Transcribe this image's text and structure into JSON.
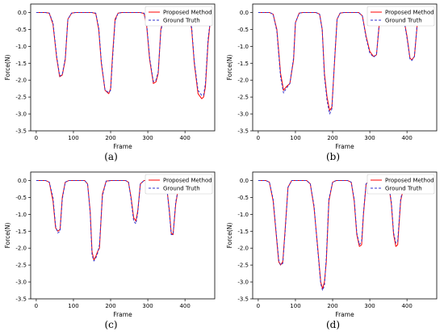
{
  "captions": [
    "(a)",
    "(b)",
    "(c)",
    "(d)"
  ],
  "chart_data": [
    {
      "type": "line",
      "xlabel": "Frame",
      "ylabel": "Force(N)",
      "xlim": [
        -15,
        480
      ],
      "ylim": [
        -3.5,
        0.25
      ],
      "xticks": [
        0,
        100,
        200,
        300,
        400
      ],
      "yticks": [
        0.0,
        -0.5,
        -1.0,
        -1.5,
        -2.0,
        -2.5,
        -3.0,
        -3.5
      ],
      "ytick_labels": [
        "0.0",
        "-0.5",
        "-1.0",
        "-1.5",
        "-2.0",
        "-2.5",
        "-3.0",
        "-3.5"
      ],
      "grid": false,
      "legend_position": "top-right",
      "series": [
        {
          "name": "Proposed Method",
          "color": "#ff0000",
          "style": "solid",
          "x": [
            0,
            25,
            35,
            45,
            55,
            63,
            70,
            78,
            85,
            95,
            105,
            150,
            160,
            168,
            175,
            185,
            195,
            200,
            205,
            212,
            220,
            230,
            240,
            280,
            290,
            297,
            305,
            315,
            322,
            328,
            335,
            345,
            355,
            400,
            410,
            418,
            425,
            435,
            445,
            450,
            455,
            462,
            470
          ],
          "y": [
            0.0,
            0.0,
            -0.02,
            -0.35,
            -1.35,
            -1.9,
            -1.85,
            -1.4,
            -0.2,
            -0.02,
            0.0,
            0.0,
            -0.03,
            -0.5,
            -1.5,
            -2.3,
            -2.4,
            -2.25,
            -1.3,
            -0.2,
            -0.02,
            0.0,
            0.0,
            0.0,
            -0.03,
            -0.4,
            -1.4,
            -2.1,
            -2.05,
            -1.8,
            -0.5,
            -0.05,
            0.0,
            0.0,
            -0.03,
            -0.5,
            -1.5,
            -2.4,
            -2.55,
            -2.5,
            -2.2,
            -0.9,
            -0.05
          ]
        },
        {
          "name": "Ground Truth",
          "color": "#3333cc",
          "style": "dashed",
          "x": [
            0,
            25,
            35,
            45,
            55,
            63,
            70,
            78,
            85,
            95,
            105,
            150,
            160,
            168,
            175,
            185,
            195,
            200,
            205,
            212,
            220,
            230,
            240,
            280,
            290,
            297,
            305,
            315,
            322,
            328,
            335,
            345,
            355,
            400,
            410,
            418,
            425,
            435,
            445,
            450,
            455,
            462,
            470
          ],
          "y": [
            0.0,
            0.0,
            -0.02,
            -0.3,
            -1.3,
            -1.88,
            -1.83,
            -1.35,
            -0.2,
            -0.02,
            0.0,
            0.0,
            -0.02,
            -0.45,
            -1.45,
            -2.3,
            -2.37,
            -2.3,
            -1.4,
            -0.25,
            -0.02,
            0.0,
            0.0,
            0.0,
            -0.02,
            -0.35,
            -1.35,
            -2.05,
            -2.0,
            -1.75,
            -0.55,
            -0.05,
            0.0,
            0.0,
            -0.02,
            -0.45,
            -1.45,
            -2.3,
            -2.45,
            -2.45,
            -2.1,
            -0.8,
            -0.05
          ]
        }
      ]
    },
    {
      "type": "line",
      "xlabel": "Frame",
      "ylabel": "Force(N)",
      "xlim": [
        -15,
        480
      ],
      "ylim": [
        -3.5,
        0.25
      ],
      "xticks": [
        0,
        100,
        200,
        300,
        400
      ],
      "yticks": [
        0.0,
        -0.5,
        -1.0,
        -1.5,
        -2.0,
        -2.5,
        -3.0,
        -3.5
      ],
      "ytick_labels": [
        "0.0",
        "-0.5",
        "-1.0",
        "-1.5",
        "-2.0",
        "-2.5",
        "-3.0",
        "-3.5"
      ],
      "grid": false,
      "legend_position": "top-right",
      "series": [
        {
          "name": "Proposed Method",
          "color": "#ff0000",
          "style": "solid",
          "x": [
            0,
            30,
            40,
            50,
            60,
            68,
            75,
            85,
            95,
            100,
            110,
            120,
            155,
            165,
            172,
            178,
            185,
            192,
            198,
            205,
            212,
            220,
            230,
            240,
            270,
            280,
            290,
            300,
            310,
            318,
            325,
            335,
            345,
            380,
            390,
            400,
            408,
            413,
            420,
            428,
            440
          ],
          "y": [
            0.0,
            0.0,
            -0.05,
            -0.5,
            -1.8,
            -2.3,
            -2.2,
            -2.1,
            -1.4,
            -0.3,
            -0.02,
            0.0,
            0.0,
            -0.05,
            -0.5,
            -1.8,
            -2.5,
            -2.9,
            -2.8,
            -1.5,
            -0.2,
            -0.02,
            0.0,
            0.0,
            0.0,
            -0.1,
            -0.7,
            -1.15,
            -1.3,
            -1.25,
            -0.4,
            -0.02,
            0.0,
            0.0,
            -0.1,
            -0.7,
            -1.35,
            -1.4,
            -1.3,
            -0.3,
            -0.02
          ]
        },
        {
          "name": "Ground Truth",
          "color": "#3333cc",
          "style": "dashed",
          "x": [
            0,
            30,
            40,
            50,
            60,
            68,
            75,
            85,
            95,
            100,
            110,
            120,
            155,
            165,
            172,
            178,
            185,
            192,
            198,
            205,
            212,
            220,
            230,
            240,
            270,
            280,
            290,
            300,
            310,
            318,
            325,
            335,
            345,
            380,
            390,
            400,
            408,
            413,
            420,
            428,
            440
          ],
          "y": [
            0.0,
            0.0,
            -0.05,
            -0.55,
            -1.9,
            -2.38,
            -2.25,
            -2.1,
            -1.35,
            -0.3,
            -0.02,
            0.0,
            0.0,
            -0.05,
            -0.5,
            -1.9,
            -2.6,
            -3.0,
            -2.85,
            -1.45,
            -0.2,
            -0.02,
            0.0,
            0.0,
            0.0,
            -0.1,
            -0.75,
            -1.2,
            -1.32,
            -1.25,
            -0.35,
            -0.02,
            0.0,
            0.0,
            -0.1,
            -0.75,
            -1.38,
            -1.42,
            -1.3,
            -0.25,
            -0.02
          ]
        }
      ]
    },
    {
      "type": "line",
      "xlabel": "Frame",
      "ylabel": "Force(N)",
      "xlim": [
        -15,
        480
      ],
      "ylim": [
        -3.5,
        0.25
      ],
      "xticks": [
        0,
        100,
        200,
        300,
        400
      ],
      "yticks": [
        0.0,
        -0.5,
        -1.0,
        -1.5,
        -2.0,
        -2.5,
        -3.0,
        -3.5
      ],
      "ytick_labels": [
        "0.0",
        "-0.5",
        "-1.0",
        "-1.5",
        "-2.0",
        "-2.5",
        "-3.0",
        "-3.5"
      ],
      "grid": false,
      "legend_position": "top-right",
      "series": [
        {
          "name": "Proposed Method",
          "color": "#ff0000",
          "style": "solid",
          "x": [
            0,
            25,
            35,
            45,
            52,
            58,
            64,
            70,
            78,
            88,
            100,
            130,
            138,
            145,
            150,
            155,
            160,
            165,
            170,
            178,
            188,
            200,
            240,
            248,
            255,
            262,
            268,
            273,
            280,
            290,
            300,
            340,
            350,
            358,
            363,
            368,
            375,
            385,
            395,
            460
          ],
          "y": [
            0.0,
            0.0,
            -0.05,
            -0.6,
            -1.4,
            -1.5,
            -1.45,
            -0.5,
            -0.05,
            0.0,
            0.0,
            0.0,
            -0.1,
            -0.9,
            -2.1,
            -2.35,
            -2.25,
            -2.1,
            -2.0,
            -0.4,
            -0.02,
            0.0,
            0.0,
            -0.05,
            -0.5,
            -1.1,
            -1.2,
            -0.9,
            -0.1,
            0.0,
            0.0,
            0.0,
            -0.1,
            -0.9,
            -1.55,
            -1.6,
            -0.7,
            -0.05,
            0.0,
            0.0
          ]
        },
        {
          "name": "Ground Truth",
          "color": "#3333cc",
          "style": "dashed",
          "x": [
            0,
            25,
            35,
            45,
            52,
            58,
            64,
            70,
            78,
            88,
            100,
            130,
            138,
            145,
            150,
            155,
            160,
            165,
            170,
            178,
            188,
            200,
            240,
            248,
            255,
            262,
            268,
            273,
            280,
            290,
            300,
            340,
            350,
            358,
            363,
            368,
            375,
            385,
            395,
            460
          ],
          "y": [
            0.0,
            0.0,
            -0.05,
            -0.5,
            -1.35,
            -1.55,
            -1.5,
            -0.55,
            -0.05,
            0.0,
            0.0,
            0.0,
            -0.1,
            -0.95,
            -2.2,
            -2.38,
            -2.3,
            -2.15,
            -1.9,
            -0.45,
            -0.02,
            0.0,
            0.0,
            -0.05,
            -0.55,
            -1.2,
            -1.28,
            -0.95,
            -0.1,
            0.0,
            0.0,
            0.0,
            -0.1,
            -0.95,
            -1.6,
            -1.6,
            -0.65,
            -0.05,
            0.0,
            0.0
          ]
        }
      ]
    },
    {
      "type": "line",
      "xlabel": "Frame",
      "ylabel": "Force(N)",
      "xlim": [
        -15,
        480
      ],
      "ylim": [
        -3.5,
        0.25
      ],
      "xticks": [
        0,
        100,
        200,
        300,
        400
      ],
      "yticks": [
        0.0,
        -0.5,
        -1.0,
        -1.5,
        -2.0,
        -2.5,
        -3.0,
        -3.5
      ],
      "ytick_labels": [
        "0.0",
        "-0.5",
        "-1.0",
        "-1.5",
        "-2.0",
        "-2.5",
        "-3.0",
        "-3.5"
      ],
      "grid": false,
      "legend_position": "top-right",
      "series": [
        {
          "name": "Proposed Method",
          "color": "#ff0000",
          "style": "solid",
          "x": [
            0,
            20,
            30,
            40,
            50,
            55,
            60,
            66,
            72,
            80,
            90,
            100,
            130,
            140,
            150,
            160,
            168,
            173,
            178,
            183,
            190,
            200,
            210,
            240,
            250,
            258,
            265,
            272,
            278,
            283,
            290,
            300,
            340,
            350,
            358,
            364,
            370,
            375,
            383,
            395,
            460
          ],
          "y": [
            0.0,
            0.0,
            -0.05,
            -0.6,
            -1.8,
            -2.4,
            -2.5,
            -2.4,
            -1.5,
            -0.2,
            0.0,
            0.0,
            0.0,
            -0.1,
            -0.8,
            -2.0,
            -3.0,
            -3.2,
            -3.0,
            -2.4,
            -0.6,
            -0.05,
            0.0,
            0.0,
            -0.05,
            -0.6,
            -1.6,
            -1.95,
            -1.9,
            -1.0,
            -0.1,
            0.0,
            0.0,
            -0.05,
            -0.7,
            -1.6,
            -1.95,
            -1.9,
            -0.6,
            0.0,
            0.0
          ]
        },
        {
          "name": "Ground Truth",
          "color": "#3333cc",
          "style": "dashed",
          "x": [
            0,
            20,
            30,
            40,
            50,
            55,
            60,
            66,
            72,
            80,
            90,
            100,
            130,
            140,
            150,
            160,
            168,
            173,
            178,
            183,
            190,
            200,
            210,
            240,
            250,
            258,
            265,
            272,
            278,
            283,
            290,
            300,
            340,
            350,
            358,
            364,
            370,
            375,
            383,
            395,
            460
          ],
          "y": [
            0.0,
            0.0,
            -0.05,
            -0.55,
            -1.75,
            -2.35,
            -2.5,
            -2.45,
            -1.55,
            -0.2,
            0.0,
            0.0,
            0.0,
            -0.1,
            -0.75,
            -2.05,
            -3.05,
            -3.25,
            -3.1,
            -2.3,
            -0.55,
            -0.05,
            0.0,
            0.0,
            -0.05,
            -0.55,
            -1.55,
            -1.9,
            -1.8,
            -0.95,
            -0.1,
            0.0,
            0.0,
            -0.05,
            -0.65,
            -1.55,
            -1.85,
            -1.8,
            -0.55,
            0.0,
            0.0
          ]
        }
      ]
    }
  ]
}
